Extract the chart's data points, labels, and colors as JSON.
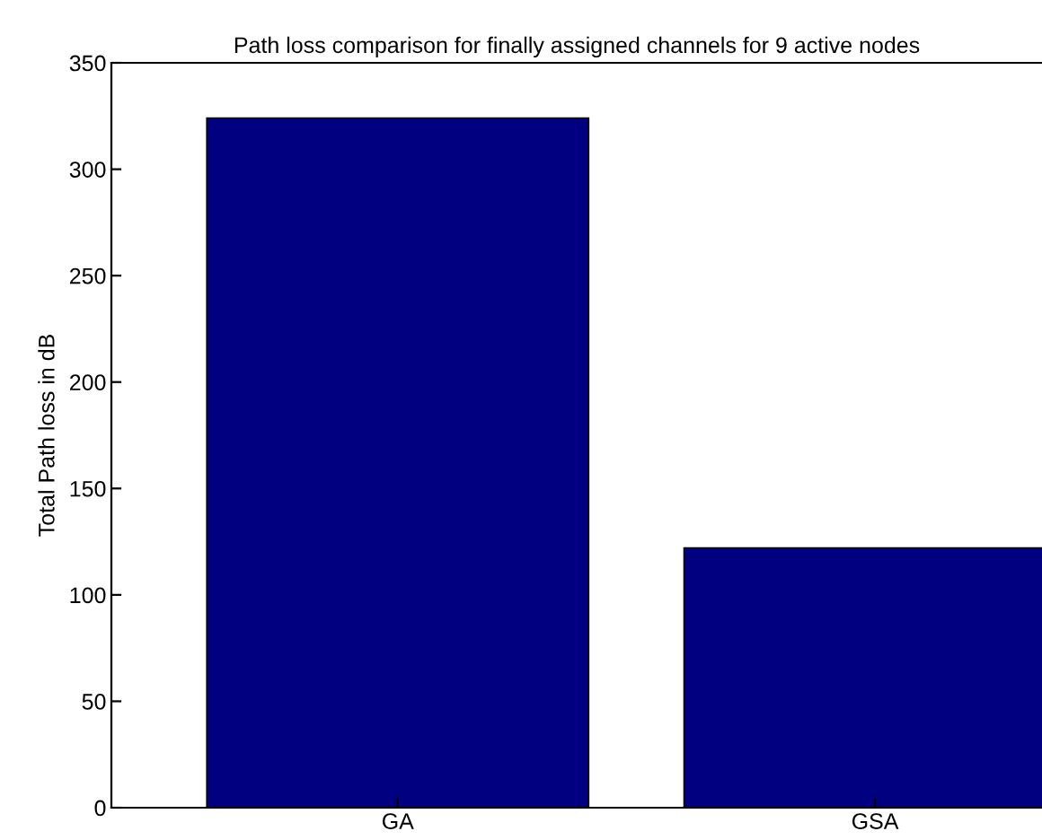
{
  "chart_data": {
    "type": "bar",
    "title": "Path loss comparison for finally assigned channels for 9 active nodes",
    "ylabel": "Total Path loss in dB",
    "categories": [
      "GA",
      "GSA"
    ],
    "values": [
      324,
      122
    ],
    "color": "#000080",
    "ylim": [
      0,
      350
    ],
    "yticks": [
      0,
      50,
      100,
      150,
      200,
      250,
      300,
      350
    ],
    "grid": false
  }
}
